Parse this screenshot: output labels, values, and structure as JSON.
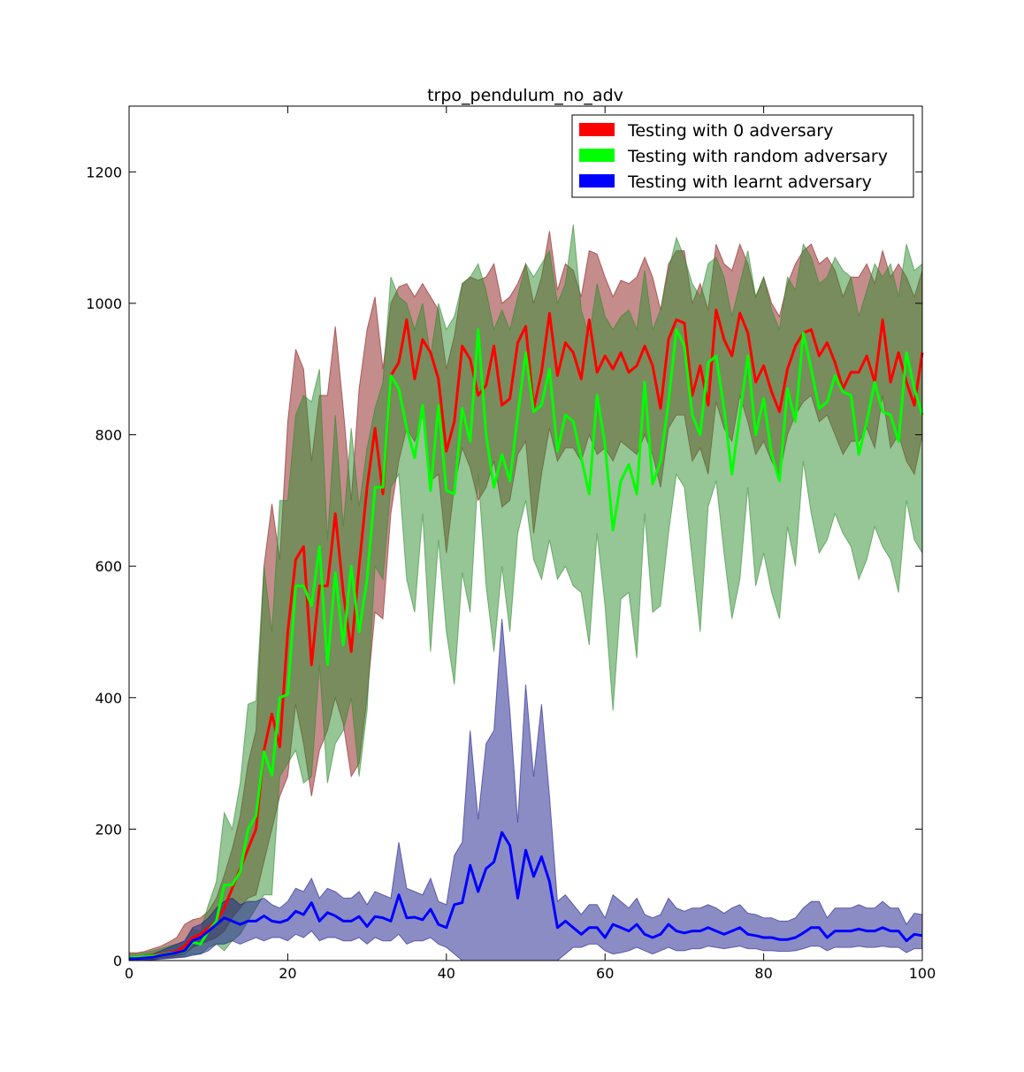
{
  "chart_data": {
    "type": "line",
    "title": "trpo_pendulum_no_adv",
    "xlabel": "",
    "ylabel": "",
    "xlim": [
      0,
      100
    ],
    "ylim": [
      0,
      1300
    ],
    "xticks": [
      0,
      20,
      40,
      60,
      80,
      100
    ],
    "yticks": [
      0,
      200,
      400,
      600,
      800,
      1000,
      1200
    ],
    "xtick_labels": [
      "0",
      "20",
      "40",
      "60",
      "80",
      "100"
    ],
    "ytick_labels": [
      "0",
      "200",
      "400",
      "600",
      "800",
      "1000",
      "1200"
    ],
    "grid": false,
    "legend_position": "top-right",
    "x": [
      0,
      1,
      2,
      3,
      4,
      5,
      6,
      7,
      8,
      9,
      10,
      11,
      12,
      13,
      14,
      15,
      16,
      17,
      18,
      19,
      20,
      21,
      22,
      23,
      24,
      25,
      26,
      27,
      28,
      29,
      30,
      31,
      32,
      33,
      34,
      35,
      36,
      37,
      38,
      39,
      40,
      41,
      42,
      43,
      44,
      45,
      46,
      47,
      48,
      49,
      50,
      51,
      52,
      53,
      54,
      55,
      56,
      57,
      58,
      59,
      60,
      61,
      62,
      63,
      64,
      65,
      66,
      67,
      68,
      69,
      70,
      71,
      72,
      73,
      74,
      75,
      76,
      77,
      78,
      79,
      80,
      81,
      82,
      83,
      84,
      85,
      86,
      87,
      88,
      89,
      90,
      91,
      92,
      93,
      94,
      95,
      96,
      97,
      98,
      99,
      100
    ],
    "series": [
      {
        "name": "Testing with 0 adversary",
        "color": "#ff0000",
        "band_color": "#8b1a1a",
        "values": [
          5,
          5,
          6,
          8,
          10,
          12,
          14,
          22,
          35,
          40,
          50,
          60,
          80,
          110,
          140,
          170,
          200,
          320,
          375,
          325,
          500,
          610,
          630,
          450,
          570,
          570,
          680,
          560,
          470,
          600,
          720,
          810,
          710,
          890,
          910,
          975,
          885,
          945,
          925,
          885,
          775,
          820,
          935,
          915,
          860,
          875,
          935,
          845,
          855,
          940,
          965,
          840,
          895,
          985,
          890,
          940,
          925,
          885,
          975,
          895,
          920,
          900,
          925,
          895,
          905,
          935,
          905,
          840,
          945,
          975,
          970,
          860,
          905,
          845,
          990,
          945,
          920,
          985,
          955,
          880,
          905,
          865,
          835,
          900,
          935,
          955,
          960,
          920,
          940,
          910,
          870,
          895,
          895,
          920,
          880,
          975,
          880,
          925,
          880,
          845,
          925
        ],
        "lower": [
          0,
          0,
          0,
          2,
          4,
          5,
          7,
          10,
          20,
          25,
          30,
          35,
          45,
          65,
          80,
          95,
          100,
          150,
          200,
          250,
          280,
          390,
          330,
          250,
          320,
          350,
          400,
          360,
          280,
          300,
          400,
          530,
          520,
          680,
          760,
          810,
          790,
          830,
          730,
          740,
          620,
          720,
          780,
          750,
          700,
          720,
          760,
          690,
          700,
          770,
          790,
          650,
          740,
          810,
          760,
          780,
          780,
          760,
          800,
          770,
          780,
          760,
          790,
          780,
          770,
          800,
          770,
          720,
          810,
          830,
          830,
          760,
          780,
          740,
          850,
          810,
          790,
          860,
          820,
          770,
          790,
          760,
          740,
          800,
          830,
          850,
          860,
          820,
          830,
          800,
          770,
          790,
          790,
          810,
          780,
          860,
          780,
          800,
          760,
          740,
          800
        ],
        "upper": [
          12,
          12,
          14,
          18,
          22,
          28,
          35,
          55,
          62,
          65,
          75,
          95,
          130,
          170,
          220,
          300,
          350,
          600,
          695,
          610,
          820,
          930,
          900,
          760,
          860,
          860,
          965,
          840,
          700,
          870,
          960,
          1010,
          900,
          1000,
          1025,
          1030,
          1010,
          1030,
          1010,
          990,
          900,
          950,
          1030,
          1040,
          1035,
          1040,
          1060,
          1000,
          1010,
          1030,
          1060,
          1000,
          1040,
          1110,
          1020,
          1060,
          1050,
          1010,
          1080,
          1075,
          1040,
          1010,
          1035,
          1030,
          1040,
          1070,
          1040,
          990,
          1060,
          1080,
          1080,
          1000,
          1030,
          990,
          1090,
          1060,
          1050,
          1090,
          1060,
          1010,
          1040,
          1000,
          980,
          1030,
          1060,
          1080,
          1090,
          1060,
          1070,
          1050,
          1010,
          1040,
          1040,
          1060,
          1030,
          1080,
          1040,
          1060,
          1040,
          1010,
          1050
        ]
      },
      {
        "name": "Testing with random adversary",
        "color": "#00ff00",
        "band_color": "#2e8b2e",
        "values": [
          5,
          5,
          6,
          7,
          9,
          11,
          12,
          14,
          28,
          25,
          45,
          60,
          115,
          115,
          135,
          200,
          220,
          318,
          282,
          400,
          405,
          570,
          570,
          540,
          630,
          450,
          590,
          480,
          600,
          500,
          580,
          720,
          720,
          890,
          870,
          810,
          765,
          845,
          715,
          845,
          715,
          710,
          840,
          790,
          960,
          800,
          720,
          770,
          730,
          830,
          925,
          835,
          845,
          900,
          775,
          830,
          820,
          765,
          710,
          860,
          785,
          655,
          730,
          755,
          710,
          880,
          725,
          760,
          850,
          960,
          935,
          830,
          800,
          910,
          920,
          840,
          740,
          830,
          920,
          800,
          855,
          770,
          730,
          870,
          820,
          955,
          900,
          840,
          850,
          890,
          865,
          860,
          770,
          820,
          880,
          835,
          830,
          790,
          925,
          870,
          830
        ],
        "lower": [
          0,
          0,
          0,
          1,
          3,
          4,
          5,
          6,
          10,
          10,
          20,
          25,
          15,
          30,
          40,
          60,
          80,
          100,
          100,
          280,
          300,
          320,
          270,
          280,
          450,
          270,
          330,
          350,
          400,
          280,
          380,
          600,
          580,
          720,
          740,
          580,
          530,
          680,
          470,
          640,
          500,
          420,
          590,
          530,
          740,
          570,
          470,
          600,
          500,
          650,
          700,
          610,
          580,
          640,
          580,
          600,
          570,
          560,
          480,
          650,
          540,
          380,
          550,
          560,
          460,
          680,
          530,
          540,
          650,
          740,
          720,
          610,
          500,
          690,
          730,
          620,
          520,
          580,
          720,
          570,
          620,
          560,
          520,
          660,
          600,
          760,
          680,
          620,
          640,
          680,
          650,
          630,
          580,
          610,
          660,
          630,
          610,
          560,
          700,
          640,
          620
        ],
        "upper": [
          10,
          10,
          12,
          15,
          18,
          22,
          25,
          28,
          48,
          45,
          85,
          120,
          225,
          200,
          270,
          390,
          395,
          600,
          500,
          700,
          700,
          830,
          860,
          850,
          900,
          640,
          830,
          660,
          810,
          690,
          780,
          840,
          880,
          1040,
          1010,
          1000,
          960,
          1000,
          920,
          1000,
          960,
          980,
          1030,
          1040,
          1060,
          1020,
          960,
          990,
          960,
          1010,
          1060,
          1040,
          1060,
          1080,
          1000,
          1030,
          1120,
          990,
          950,
          1030,
          980,
          960,
          980,
          990,
          960,
          1050,
          960,
          990,
          1050,
          1100,
          1070,
          1030,
          1010,
          1060,
          1070,
          1040,
          980,
          1030,
          1080,
          1010,
          1040,
          990,
          960,
          1040,
          1020,
          1090,
          1070,
          1030,
          1040,
          1070,
          1050,
          1040,
          980,
          1020,
          1060,
          1040,
          1060,
          1010,
          1090,
          1050,
          1060
        ]
      },
      {
        "name": "Testing with learnt adversary",
        "color": "#0000ff",
        "band_color": "#1a1a8b",
        "values": [
          3,
          3,
          4,
          5,
          8,
          10,
          12,
          15,
          30,
          35,
          45,
          55,
          65,
          60,
          55,
          60,
          60,
          68,
          60,
          58,
          62,
          75,
          70,
          88,
          60,
          73,
          68,
          60,
          60,
          67,
          52,
          67,
          65,
          60,
          100,
          65,
          66,
          62,
          78,
          55,
          50,
          85,
          88,
          145,
          105,
          140,
          150,
          195,
          175,
          95,
          168,
          128,
          158,
          120,
          50,
          60,
          50,
          40,
          50,
          50,
          35,
          55,
          50,
          45,
          55,
          40,
          35,
          40,
          55,
          45,
          42,
          45,
          45,
          50,
          45,
          40,
          45,
          50,
          40,
          38,
          35,
          35,
          32,
          32,
          35,
          42,
          50,
          50,
          35,
          45,
          45,
          45,
          48,
          45,
          45,
          50,
          45,
          45,
          30,
          40,
          38
        ],
        "lower": [
          0,
          0,
          0,
          1,
          2,
          3,
          4,
          5,
          8,
          10,
          15,
          25,
          25,
          30,
          25,
          30,
          35,
          30,
          35,
          35,
          30,
          40,
          35,
          45,
          30,
          35,
          35,
          30,
          30,
          35,
          25,
          35,
          30,
          30,
          40,
          25,
          30,
          30,
          35,
          25,
          20,
          10,
          0,
          0,
          0,
          0,
          0,
          0,
          0,
          0,
          0,
          0,
          0,
          0,
          0,
          10,
          20,
          20,
          25,
          25,
          15,
          10,
          12,
          15,
          20,
          15,
          10,
          15,
          20,
          15,
          15,
          18,
          18,
          22,
          20,
          18,
          20,
          22,
          18,
          18,
          15,
          15,
          14,
          14,
          15,
          18,
          22,
          22,
          15,
          20,
          20,
          20,
          22,
          20,
          20,
          22,
          20,
          20,
          12,
          18,
          18
        ],
        "upper": [
          6,
          6,
          8,
          10,
          15,
          20,
          25,
          30,
          50,
          55,
          65,
          80,
          90,
          95,
          85,
          90,
          90,
          95,
          85,
          80,
          90,
          110,
          105,
          125,
          95,
          110,
          105,
          95,
          95,
          105,
          85,
          105,
          100,
          95,
          180,
          110,
          105,
          100,
          125,
          90,
          85,
          160,
          180,
          350,
          215,
          330,
          350,
          520,
          380,
          210,
          420,
          280,
          390,
          250,
          90,
          100,
          85,
          70,
          85,
          85,
          65,
          100,
          90,
          80,
          95,
          70,
          65,
          70,
          95,
          80,
          75,
          80,
          80,
          85,
          80,
          72,
          80,
          85,
          72,
          70,
          65,
          65,
          60,
          60,
          65,
          80,
          90,
          90,
          65,
          80,
          80,
          80,
          85,
          80,
          80,
          90,
          80,
          80,
          55,
          72,
          70
        ]
      }
    ]
  }
}
